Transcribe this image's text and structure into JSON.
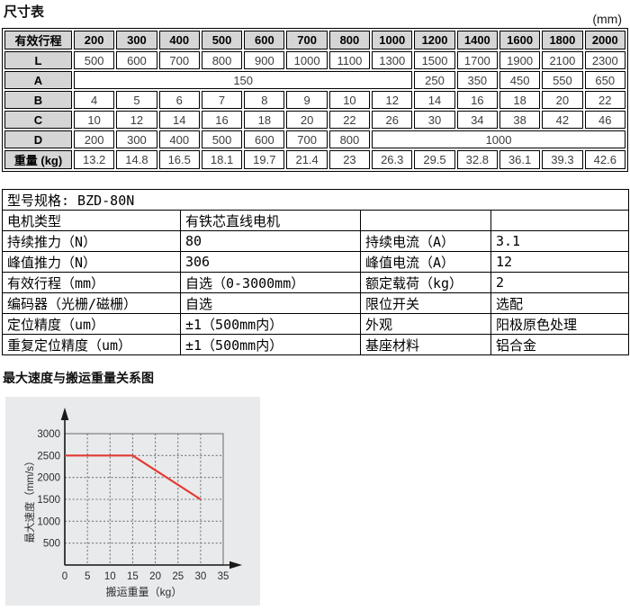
{
  "page": {
    "title": "尺寸表",
    "unit_note": "(mm)",
    "chart_title": "最大速度与搬运重量关系图"
  },
  "dimension_table": {
    "header": [
      "有效行程",
      "200",
      "300",
      "400",
      "500",
      "600",
      "700",
      "800",
      "1000",
      "1200",
      "1400",
      "1600",
      "1800",
      "2000"
    ],
    "rows": [
      {
        "label": "L",
        "cells": [
          {
            "v": "500"
          },
          {
            "v": "600"
          },
          {
            "v": "700"
          },
          {
            "v": "800"
          },
          {
            "v": "900"
          },
          {
            "v": "1000"
          },
          {
            "v": "1100"
          },
          {
            "v": "1300"
          },
          {
            "v": "1500"
          },
          {
            "v": "1700"
          },
          {
            "v": "1900"
          },
          {
            "v": "2100"
          },
          {
            "v": "2300"
          }
        ]
      },
      {
        "label": "A",
        "cells": [
          {
            "v": "150",
            "span": 8
          },
          {
            "v": "250"
          },
          {
            "v": "350"
          },
          {
            "v": "450"
          },
          {
            "v": "550"
          },
          {
            "v": "650"
          }
        ]
      },
      {
        "label": "B",
        "cells": [
          {
            "v": "4"
          },
          {
            "v": "5"
          },
          {
            "v": "6"
          },
          {
            "v": "7"
          },
          {
            "v": "8"
          },
          {
            "v": "9"
          },
          {
            "v": "10"
          },
          {
            "v": "12"
          },
          {
            "v": "14"
          },
          {
            "v": "16"
          },
          {
            "v": "18"
          },
          {
            "v": "20"
          },
          {
            "v": "22"
          }
        ]
      },
      {
        "label": "C",
        "cells": [
          {
            "v": "10"
          },
          {
            "v": "12"
          },
          {
            "v": "14"
          },
          {
            "v": "16"
          },
          {
            "v": "18"
          },
          {
            "v": "20"
          },
          {
            "v": "22"
          },
          {
            "v": "26"
          },
          {
            "v": "30"
          },
          {
            "v": "34"
          },
          {
            "v": "38"
          },
          {
            "v": "42"
          },
          {
            "v": "46"
          }
        ]
      },
      {
        "label": "D",
        "cells": [
          {
            "v": "200"
          },
          {
            "v": "300"
          },
          {
            "v": "400"
          },
          {
            "v": "500"
          },
          {
            "v": "600"
          },
          {
            "v": "700"
          },
          {
            "v": "800"
          },
          {
            "v": "1000",
            "span": 6
          }
        ]
      },
      {
        "label": "重量 (kg)",
        "cells": [
          {
            "v": "13.2"
          },
          {
            "v": "14.8"
          },
          {
            "v": "16.5"
          },
          {
            "v": "18.1"
          },
          {
            "v": "19.7"
          },
          {
            "v": "21.4"
          },
          {
            "v": "23"
          },
          {
            "v": "26.3"
          },
          {
            "v": "29.5"
          },
          {
            "v": "32.8"
          },
          {
            "v": "36.1"
          },
          {
            "v": "39.3"
          },
          {
            "v": "42.6"
          }
        ]
      }
    ]
  },
  "spec_table": {
    "model_row": "型号规格: BZD-80N",
    "rows": [
      [
        "电机类型",
        "有铁芯直线电机",
        "",
        ""
      ],
      [
        "持续推力（N）",
        "80",
        "持续电流（A）",
        "3.1"
      ],
      [
        "峰值推力（N）",
        "306",
        "峰值电流（A）",
        "12"
      ],
      [
        "有效行程（mm）",
        "自选（0-3000mm）",
        "额定载荷（kg）",
        "2"
      ],
      [
        "编码器（光栅/磁栅）",
        "自选",
        "限位开关",
        "选配"
      ],
      [
        "定位精度（um）",
        "±1（500mm内）",
        "外观",
        "阳极原色处理"
      ],
      [
        "重复定位精度（um）",
        "±1（500mm内）",
        "基座材料",
        "铝合金"
      ]
    ]
  },
  "chart_data": {
    "type": "line",
    "title": "最大速度与搬运重量关系图",
    "xlabel": "搬运重量（kg）",
    "ylabel": "最大速度（mm/s）",
    "xlim": [
      0,
      35
    ],
    "ylim": [
      0,
      3000
    ],
    "x_ticks": [
      0,
      5,
      10,
      15,
      20,
      25,
      30,
      35
    ],
    "y_ticks": [
      500,
      1000,
      1500,
      2000,
      2500,
      3000
    ],
    "grid": "dashed",
    "legend": "none",
    "series": [
      {
        "name": "最大速度",
        "color": "#e23a32",
        "points": [
          [
            0,
            2500
          ],
          [
            15,
            2500
          ],
          [
            30,
            1500
          ]
        ]
      }
    ]
  },
  "colors": {
    "header_bg": "#d5d5d5",
    "chart_bg": "#e9eaec",
    "grid": "#737476",
    "plot_border": "#7d7e80",
    "axis": "#1a1a1a",
    "line_red": "#e23a32"
  }
}
